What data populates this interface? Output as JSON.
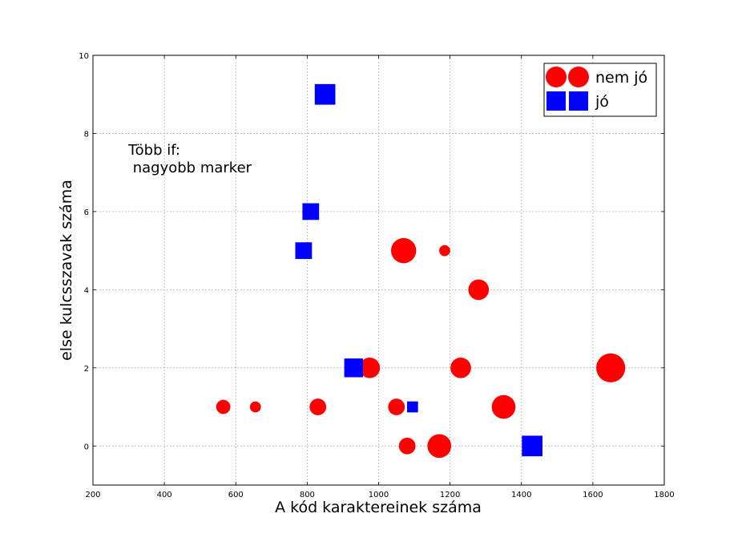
{
  "chart_data": {
    "type": "scatter",
    "xlabel": "A kód karaktereinek száma",
    "ylabel": "else kulcsszavak száma",
    "xlim": [
      200,
      1800
    ],
    "ylim": [
      -1,
      10
    ],
    "xticks": [
      "200",
      "400",
      "600",
      "800",
      "1000",
      "1200",
      "1400",
      "1600",
      "1800"
    ],
    "yticks": [
      "0",
      "2",
      "4",
      "6",
      "8",
      "10"
    ],
    "grid": true,
    "legend_position": "top-right",
    "annotation": [
      "Több if:",
      " nagyobb marker"
    ],
    "series": [
      {
        "name": "nem jó",
        "marker": "circle",
        "color": "#ff0000",
        "points": [
          {
            "x": 565,
            "y": 1,
            "size": 2
          },
          {
            "x": 655,
            "y": 1,
            "size": 1
          },
          {
            "x": 830,
            "y": 1,
            "size": 3
          },
          {
            "x": 975,
            "y": 2,
            "size": 5
          },
          {
            "x": 1050,
            "y": 1,
            "size": 3
          },
          {
            "x": 1070,
            "y": 5,
            "size": 8
          },
          {
            "x": 1080,
            "y": 0,
            "size": 3
          },
          {
            "x": 1170,
            "y": 0,
            "size": 7
          },
          {
            "x": 1185,
            "y": 5,
            "size": 1
          },
          {
            "x": 1230,
            "y": 2,
            "size": 5
          },
          {
            "x": 1280,
            "y": 4,
            "size": 5
          },
          {
            "x": 1350,
            "y": 1,
            "size": 7
          },
          {
            "x": 1650,
            "y": 2,
            "size": 11
          }
        ]
      },
      {
        "name": "jó",
        "marker": "square",
        "color": "#0000ff",
        "points": [
          {
            "x": 850,
            "y": 9,
            "size": 5
          },
          {
            "x": 810,
            "y": 6,
            "size": 3
          },
          {
            "x": 790,
            "y": 5,
            "size": 3
          },
          {
            "x": 930,
            "y": 2,
            "size": 4
          },
          {
            "x": 1095,
            "y": 1,
            "size": 1
          },
          {
            "x": 1430,
            "y": 0,
            "size": 5
          }
        ]
      }
    ]
  }
}
